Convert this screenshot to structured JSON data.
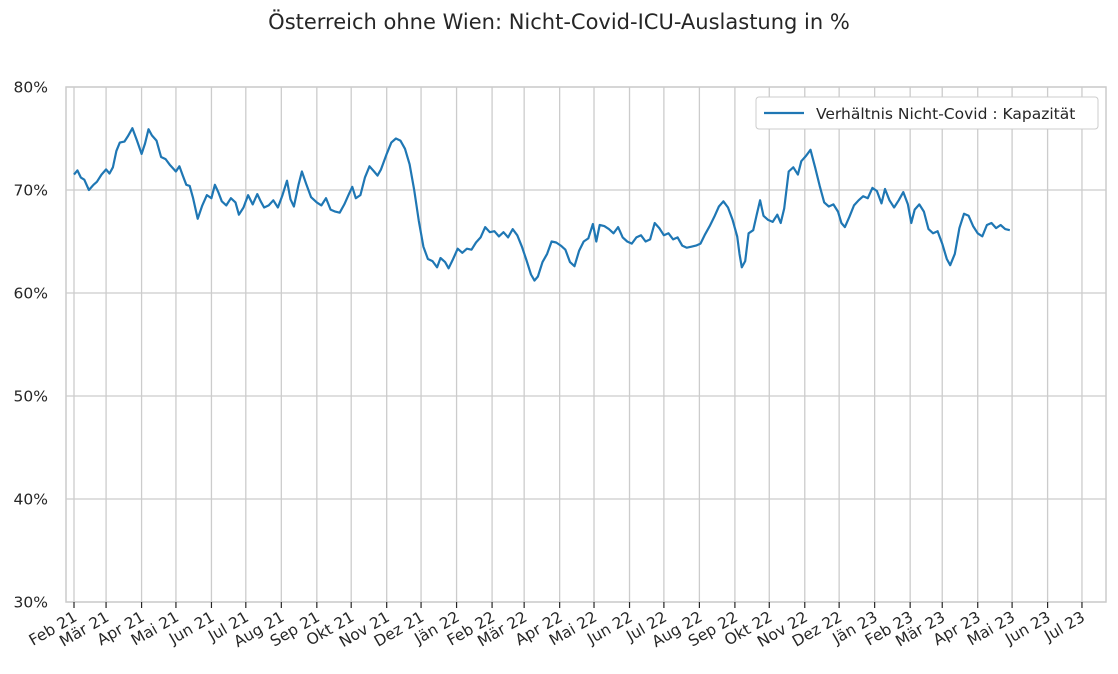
{
  "colors": {
    "series": "#1f77b4",
    "grid": "#cccccc",
    "text": "#262626",
    "background": "#ffffff"
  },
  "chart_data": {
    "type": "line",
    "title": "Österreich ohne Wien: Nicht-Covid-ICU-Auslastung in %",
    "xlabel": "",
    "ylabel": "",
    "ylim": [
      30,
      80
    ],
    "xlim": [
      "2021-02-01",
      "2023-07-15"
    ],
    "grid": true,
    "legend_position": "top-right",
    "y_ticks": [
      {
        "value": 30,
        "label": "30%"
      },
      {
        "value": 40,
        "label": "40%"
      },
      {
        "value": 50,
        "label": "50%"
      },
      {
        "value": 60,
        "label": "60%"
      },
      {
        "value": 70,
        "label": "70%"
      },
      {
        "value": 80,
        "label": "80%"
      }
    ],
    "x_ticks": [
      {
        "date": "2021-02-01",
        "label": "Feb 21"
      },
      {
        "date": "2021-03-01",
        "label": "Mär 21"
      },
      {
        "date": "2021-04-01",
        "label": "Apr 21"
      },
      {
        "date": "2021-05-01",
        "label": "Mai 21"
      },
      {
        "date": "2021-06-01",
        "label": "Jun 21"
      },
      {
        "date": "2021-07-01",
        "label": "Jul 21"
      },
      {
        "date": "2021-08-01",
        "label": "Aug 21"
      },
      {
        "date": "2021-09-01",
        "label": "Sep 21"
      },
      {
        "date": "2021-10-01",
        "label": "Okt 21"
      },
      {
        "date": "2021-11-01",
        "label": "Nov 21"
      },
      {
        "date": "2021-12-01",
        "label": "Dez 21"
      },
      {
        "date": "2022-01-01",
        "label": "Jän 22"
      },
      {
        "date": "2022-02-01",
        "label": "Feb 22"
      },
      {
        "date": "2022-03-01",
        "label": "Mär 22"
      },
      {
        "date": "2022-04-01",
        "label": "Apr 22"
      },
      {
        "date": "2022-05-01",
        "label": "Mai 22"
      },
      {
        "date": "2022-06-01",
        "label": "Jun 22"
      },
      {
        "date": "2022-07-01",
        "label": "Jul 22"
      },
      {
        "date": "2022-08-01",
        "label": "Aug 22"
      },
      {
        "date": "2022-09-01",
        "label": "Sep 22"
      },
      {
        "date": "2022-10-01",
        "label": "Okt 22"
      },
      {
        "date": "2022-11-01",
        "label": "Nov 22"
      },
      {
        "date": "2022-12-01",
        "label": "Dez 22"
      },
      {
        "date": "2023-01-01",
        "label": "Jän 23"
      },
      {
        "date": "2023-02-01",
        "label": "Feb 23"
      },
      {
        "date": "2023-03-01",
        "label": "Mär 23"
      },
      {
        "date": "2023-04-01",
        "label": "Apr 23"
      },
      {
        "date": "2023-05-01",
        "label": "Mai 23"
      },
      {
        "date": "2023-06-01",
        "label": "Jun 23"
      },
      {
        "date": "2023-07-01",
        "label": "Jul 23"
      }
    ],
    "series": [
      {
        "name": "Verhältnis Nicht-Covid : Kapazität",
        "color": "#1f77b4",
        "points": [
          [
            "2021-02-01",
            71.5
          ],
          [
            "2021-02-04",
            71.9
          ],
          [
            "2021-02-07",
            71.2
          ],
          [
            "2021-02-10",
            71.0
          ],
          [
            "2021-02-14",
            70.0
          ],
          [
            "2021-02-18",
            70.5
          ],
          [
            "2021-02-21",
            70.8
          ],
          [
            "2021-02-25",
            71.5
          ],
          [
            "2021-03-01",
            72.0
          ],
          [
            "2021-03-04",
            71.6
          ],
          [
            "2021-03-07",
            72.2
          ],
          [
            "2021-03-10",
            73.8
          ],
          [
            "2021-03-13",
            74.6
          ],
          [
            "2021-03-17",
            74.7
          ],
          [
            "2021-03-20",
            75.2
          ],
          [
            "2021-03-24",
            76.0
          ],
          [
            "2021-03-28",
            74.8
          ],
          [
            "2021-04-01",
            73.5
          ],
          [
            "2021-04-04",
            74.5
          ],
          [
            "2021-04-07",
            75.9
          ],
          [
            "2021-04-10",
            75.3
          ],
          [
            "2021-04-14",
            74.8
          ],
          [
            "2021-04-18",
            73.2
          ],
          [
            "2021-04-22",
            73.0
          ],
          [
            "2021-04-26",
            72.4
          ],
          [
            "2021-05-01",
            71.8
          ],
          [
            "2021-05-04",
            72.3
          ],
          [
            "2021-05-07",
            71.4
          ],
          [
            "2021-05-10",
            70.5
          ],
          [
            "2021-05-13",
            70.4
          ],
          [
            "2021-05-16",
            69.2
          ],
          [
            "2021-05-20",
            67.2
          ],
          [
            "2021-05-24",
            68.5
          ],
          [
            "2021-05-28",
            69.5
          ],
          [
            "2021-06-01",
            69.2
          ],
          [
            "2021-06-04",
            70.5
          ],
          [
            "2021-06-07",
            69.8
          ],
          [
            "2021-06-10",
            68.9
          ],
          [
            "2021-06-14",
            68.5
          ],
          [
            "2021-06-18",
            69.2
          ],
          [
            "2021-06-22",
            68.8
          ],
          [
            "2021-06-25",
            67.6
          ],
          [
            "2021-06-29",
            68.3
          ],
          [
            "2021-07-03",
            69.5
          ],
          [
            "2021-07-07",
            68.6
          ],
          [
            "2021-07-11",
            69.6
          ],
          [
            "2021-07-14",
            68.9
          ],
          [
            "2021-07-17",
            68.3
          ],
          [
            "2021-07-21",
            68.5
          ],
          [
            "2021-07-25",
            69.0
          ],
          [
            "2021-07-29",
            68.3
          ],
          [
            "2021-08-02",
            69.5
          ],
          [
            "2021-08-06",
            70.9
          ],
          [
            "2021-08-09",
            69.1
          ],
          [
            "2021-08-12",
            68.4
          ],
          [
            "2021-08-16",
            70.5
          ],
          [
            "2021-08-19",
            71.8
          ],
          [
            "2021-08-23",
            70.5
          ],
          [
            "2021-08-27",
            69.3
          ],
          [
            "2021-09-01",
            68.8
          ],
          [
            "2021-09-05",
            68.5
          ],
          [
            "2021-09-09",
            69.2
          ],
          [
            "2021-09-13",
            68.1
          ],
          [
            "2021-09-17",
            67.9
          ],
          [
            "2021-09-21",
            67.8
          ],
          [
            "2021-09-25",
            68.6
          ],
          [
            "2021-09-29",
            69.6
          ],
          [
            "2021-10-02",
            70.3
          ],
          [
            "2021-10-05",
            69.2
          ],
          [
            "2021-10-09",
            69.5
          ],
          [
            "2021-10-13",
            71.2
          ],
          [
            "2021-10-17",
            72.3
          ],
          [
            "2021-10-21",
            71.8
          ],
          [
            "2021-10-24",
            71.4
          ],
          [
            "2021-10-27",
            72.0
          ],
          [
            "2021-11-01",
            73.5
          ],
          [
            "2021-11-05",
            74.6
          ],
          [
            "2021-11-09",
            75.0
          ],
          [
            "2021-11-13",
            74.8
          ],
          [
            "2021-11-17",
            74.0
          ],
          [
            "2021-11-21",
            72.5
          ],
          [
            "2021-11-25",
            70.0
          ],
          [
            "2021-11-29",
            67.0
          ],
          [
            "2021-12-03",
            64.5
          ],
          [
            "2021-12-07",
            63.3
          ],
          [
            "2021-12-11",
            63.1
          ],
          [
            "2021-12-15",
            62.5
          ],
          [
            "2021-12-18",
            63.4
          ],
          [
            "2021-12-22",
            63.0
          ],
          [
            "2021-12-25",
            62.4
          ],
          [
            "2021-12-29",
            63.3
          ],
          [
            "2022-01-02",
            64.3
          ],
          [
            "2022-01-06",
            63.9
          ],
          [
            "2022-01-10",
            64.3
          ],
          [
            "2022-01-14",
            64.2
          ],
          [
            "2022-01-18",
            64.9
          ],
          [
            "2022-01-22",
            65.4
          ],
          [
            "2022-01-26",
            66.4
          ],
          [
            "2022-01-30",
            65.9
          ],
          [
            "2022-02-03",
            66.0
          ],
          [
            "2022-02-07",
            65.5
          ],
          [
            "2022-02-11",
            65.9
          ],
          [
            "2022-02-15",
            65.4
          ],
          [
            "2022-02-19",
            66.2
          ],
          [
            "2022-02-23",
            65.6
          ],
          [
            "2022-02-27",
            64.5
          ],
          [
            "2022-03-03",
            63.2
          ],
          [
            "2022-03-07",
            61.8
          ],
          [
            "2022-03-10",
            61.2
          ],
          [
            "2022-03-13",
            61.6
          ],
          [
            "2022-03-17",
            63.0
          ],
          [
            "2022-03-21",
            63.8
          ],
          [
            "2022-03-25",
            65.0
          ],
          [
            "2022-03-29",
            64.9
          ],
          [
            "2022-04-02",
            64.6
          ],
          [
            "2022-04-06",
            64.2
          ],
          [
            "2022-04-10",
            63.0
          ],
          [
            "2022-04-14",
            62.6
          ],
          [
            "2022-04-18",
            64.1
          ],
          [
            "2022-04-22",
            65.0
          ],
          [
            "2022-04-26",
            65.3
          ],
          [
            "2022-04-30",
            66.7
          ],
          [
            "2022-05-03",
            65.0
          ],
          [
            "2022-05-06",
            66.6
          ],
          [
            "2022-05-10",
            66.5
          ],
          [
            "2022-05-14",
            66.2
          ],
          [
            "2022-05-18",
            65.8
          ],
          [
            "2022-05-22",
            66.4
          ],
          [
            "2022-05-26",
            65.4
          ],
          [
            "2022-05-30",
            65.0
          ],
          [
            "2022-06-03",
            64.8
          ],
          [
            "2022-06-07",
            65.4
          ],
          [
            "2022-06-11",
            65.6
          ],
          [
            "2022-06-15",
            65.0
          ],
          [
            "2022-06-19",
            65.2
          ],
          [
            "2022-06-23",
            66.8
          ],
          [
            "2022-06-27",
            66.3
          ],
          [
            "2022-07-01",
            65.6
          ],
          [
            "2022-07-05",
            65.8
          ],
          [
            "2022-07-09",
            65.2
          ],
          [
            "2022-07-13",
            65.4
          ],
          [
            "2022-07-17",
            64.6
          ],
          [
            "2022-07-21",
            64.4
          ],
          [
            "2022-07-25",
            64.5
          ],
          [
            "2022-07-29",
            64.6
          ],
          [
            "2022-08-02",
            64.8
          ],
          [
            "2022-08-06",
            65.7
          ],
          [
            "2022-08-10",
            66.5
          ],
          [
            "2022-08-14",
            67.4
          ],
          [
            "2022-08-18",
            68.4
          ],
          [
            "2022-08-22",
            68.9
          ],
          [
            "2022-08-26",
            68.3
          ],
          [
            "2022-08-30",
            67.1
          ],
          [
            "2022-09-03",
            65.5
          ],
          [
            "2022-09-05",
            63.8
          ],
          [
            "2022-09-07",
            62.5
          ],
          [
            "2022-09-10",
            63.1
          ],
          [
            "2022-09-13",
            65.8
          ],
          [
            "2022-09-17",
            66.1
          ],
          [
            "2022-09-20",
            67.6
          ],
          [
            "2022-09-23",
            69.0
          ],
          [
            "2022-09-26",
            67.5
          ],
          [
            "2022-09-30",
            67.1
          ],
          [
            "2022-10-04",
            66.9
          ],
          [
            "2022-10-08",
            67.6
          ],
          [
            "2022-10-11",
            66.8
          ],
          [
            "2022-10-14",
            68.2
          ],
          [
            "2022-10-18",
            71.8
          ],
          [
            "2022-10-22",
            72.2
          ],
          [
            "2022-10-26",
            71.5
          ],
          [
            "2022-10-29",
            72.8
          ],
          [
            "2022-11-02",
            73.3
          ],
          [
            "2022-11-06",
            73.9
          ],
          [
            "2022-11-10",
            72.2
          ],
          [
            "2022-11-14",
            70.4
          ],
          [
            "2022-11-18",
            68.8
          ],
          [
            "2022-11-22",
            68.4
          ],
          [
            "2022-11-26",
            68.6
          ],
          [
            "2022-11-30",
            67.9
          ],
          [
            "2022-12-03",
            66.8
          ],
          [
            "2022-12-06",
            66.4
          ],
          [
            "2022-12-10",
            67.4
          ],
          [
            "2022-12-14",
            68.5
          ],
          [
            "2022-12-18",
            69.0
          ],
          [
            "2022-12-22",
            69.4
          ],
          [
            "2022-12-26",
            69.2
          ],
          [
            "2022-12-30",
            70.2
          ],
          [
            "2023-01-03",
            69.9
          ],
          [
            "2023-01-07",
            68.7
          ],
          [
            "2023-01-10",
            70.1
          ],
          [
            "2023-01-14",
            69.0
          ],
          [
            "2023-01-18",
            68.3
          ],
          [
            "2023-01-22",
            69.0
          ],
          [
            "2023-01-26",
            69.8
          ],
          [
            "2023-01-30",
            68.6
          ],
          [
            "2023-02-02",
            66.8
          ],
          [
            "2023-02-05",
            68.1
          ],
          [
            "2023-02-09",
            68.6
          ],
          [
            "2023-02-13",
            67.9
          ],
          [
            "2023-02-17",
            66.2
          ],
          [
            "2023-02-21",
            65.8
          ],
          [
            "2023-02-25",
            66.0
          ],
          [
            "2023-03-01",
            64.8
          ],
          [
            "2023-03-05",
            63.3
          ],
          [
            "2023-03-08",
            62.7
          ],
          [
            "2023-03-12",
            63.8
          ],
          [
            "2023-03-16",
            66.3
          ],
          [
            "2023-03-20",
            67.7
          ],
          [
            "2023-03-24",
            67.5
          ],
          [
            "2023-03-28",
            66.5
          ],
          [
            "2023-04-01",
            65.8
          ],
          [
            "2023-04-05",
            65.5
          ],
          [
            "2023-04-09",
            66.6
          ],
          [
            "2023-04-13",
            66.8
          ],
          [
            "2023-04-17",
            66.3
          ],
          [
            "2023-04-21",
            66.6
          ],
          [
            "2023-04-25",
            66.2
          ],
          [
            "2023-04-29",
            66.1
          ]
        ]
      }
    ]
  }
}
